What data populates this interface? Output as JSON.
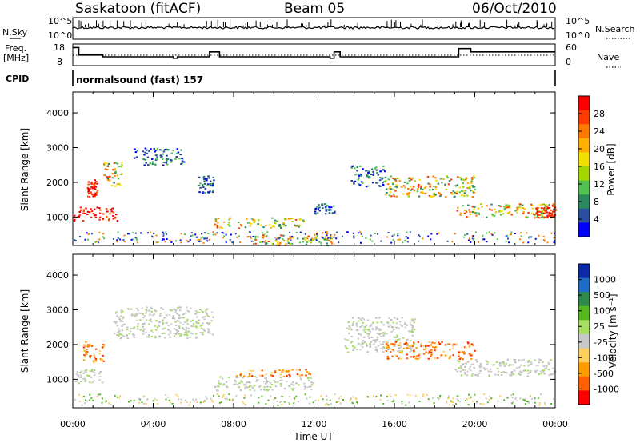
{
  "header": {
    "station": "Saskatoon (fitACF)",
    "beam": "Beam 05",
    "date": "06/Oct/2010"
  },
  "strip_labels": {
    "nsky": "N.Sky",
    "nsearch": "N.Search",
    "freq_line1": "Freq.",
    "freq_line2": "[MHz]",
    "nave": "Nave",
    "cpid": "CPID",
    "cpid_value": "normalsound (fast) 157",
    "nsky_ticks": [
      "10^5",
      "10^0"
    ],
    "nsearch_ticks": [
      "10^5",
      "10^0"
    ],
    "freq_ticks": [
      "18",
      "8"
    ],
    "nave_ticks": [
      "60",
      "0"
    ]
  },
  "power_panel": {
    "ylabel": "Slant Range [km]",
    "cbar_label": "Power [dB]",
    "cbar_ticks": [
      "28",
      "24",
      "20",
      "16",
      "12",
      "8",
      "4"
    ],
    "cbar_colors": [
      "#ff0000",
      "#ff3a00",
      "#ff7a00",
      "#ffb000",
      "#f4e000",
      "#a4d800",
      "#4fc24f",
      "#2a8a5e",
      "#2a4fa0",
      "#0000ff"
    ]
  },
  "velocity_panel": {
    "ylabel": "Slant Range [km]",
    "cbar_label": "Velocity [m s⁻¹]",
    "cbar_ticks": [
      "1000",
      "500",
      "100",
      "25",
      "-25",
      "-100",
      "-500",
      "-1000"
    ],
    "cbar_colors": [
      "#0a2aa8",
      "#1c6ec4",
      "#2e8a4a",
      "#55b820",
      "#a6de60",
      "#c8c8c8",
      "#ffd060",
      "#ff9c00",
      "#ff6000",
      "#ff0000"
    ]
  },
  "x_axis": {
    "label": "Time UT",
    "ticks": [
      "00:00",
      "04:00",
      "08:00",
      "12:00",
      "16:00",
      "20:00",
      "00:00"
    ]
  },
  "chart_data": {
    "type": "heatmap",
    "x_range_hours": [
      0,
      24
    ],
    "y_ticks_km": [
      1000,
      2000,
      3000,
      4000
    ],
    "ylim_km": [
      180,
      4600
    ],
    "freq_mhz": [
      {
        "t": 0.0,
        "v": 17.5
      },
      {
        "t": 0.3,
        "v": 14.0
      },
      {
        "t": 1.5,
        "v": 13.2
      },
      {
        "t": 5.0,
        "v": 12.5
      },
      {
        "t": 5.2,
        "v": 13.2
      },
      {
        "t": 6.8,
        "v": 15.5
      },
      {
        "t": 7.3,
        "v": 13.2
      },
      {
        "t": 12.8,
        "v": 12.5
      },
      {
        "t": 13.0,
        "v": 15.5
      },
      {
        "t": 13.3,
        "v": 13.2
      },
      {
        "t": 19.2,
        "v": 17.0
      },
      {
        "t": 19.8,
        "v": 15.5
      },
      {
        "t": 24.0,
        "v": 15.5
      }
    ],
    "power_regions": [
      {
        "t0": 0.0,
        "t1": 2.2,
        "r0": 900,
        "r1": 1300,
        "level": "high"
      },
      {
        "t0": 0.7,
        "t1": 1.2,
        "r0": 1600,
        "r1": 2100,
        "level": "high"
      },
      {
        "t0": 1.5,
        "t1": 2.5,
        "r0": 1900,
        "r1": 2600,
        "level": "medium"
      },
      {
        "t0": 3.0,
        "t1": 5.5,
        "r0": 2500,
        "r1": 3000,
        "level": "low"
      },
      {
        "t0": 6.2,
        "t1": 7.0,
        "r0": 1700,
        "r1": 2200,
        "level": "low"
      },
      {
        "t0": 7.0,
        "t1": 11.5,
        "r0": 700,
        "r1": 1000,
        "level": "medium"
      },
      {
        "t0": 9.0,
        "t1": 13.0,
        "r0": 200,
        "r1": 500,
        "level": "medium"
      },
      {
        "t0": 12.0,
        "t1": 13.0,
        "r0": 1100,
        "r1": 1400,
        "level": "low"
      },
      {
        "t0": 13.8,
        "t1": 15.5,
        "r0": 1900,
        "r1": 2500,
        "level": "low"
      },
      {
        "t0": 15.5,
        "t1": 20.0,
        "r0": 1600,
        "r1": 2200,
        "level": "medium"
      },
      {
        "t0": 19.0,
        "t1": 24.0,
        "r0": 1000,
        "r1": 1400,
        "level": "medium"
      },
      {
        "t0": 23.0,
        "t1": 24.0,
        "r0": 1000,
        "r1": 1300,
        "level": "high"
      }
    ],
    "velocity_regions": [
      {
        "t0": 0.0,
        "t1": 1.5,
        "r0": 900,
        "r1": 1300,
        "level": "ground"
      },
      {
        "t0": 0.5,
        "t1": 1.5,
        "r0": 1500,
        "r1": 2100,
        "level": "negative"
      },
      {
        "t0": 2.0,
        "t1": 7.0,
        "r0": 2200,
        "r1": 3100,
        "level": "ground"
      },
      {
        "t0": 7.0,
        "t1": 12.0,
        "r0": 700,
        "r1": 1100,
        "level": "ground"
      },
      {
        "t0": 8.0,
        "t1": 12.0,
        "r0": 1100,
        "r1": 1300,
        "level": "negative"
      },
      {
        "t0": 13.5,
        "t1": 17.0,
        "r0": 1800,
        "r1": 2800,
        "level": "ground"
      },
      {
        "t0": 15.5,
        "t1": 20.0,
        "r0": 1600,
        "r1": 2100,
        "level": "negative"
      },
      {
        "t0": 19.0,
        "t1": 24.0,
        "r0": 1100,
        "r1": 1600,
        "level": "ground"
      }
    ]
  }
}
